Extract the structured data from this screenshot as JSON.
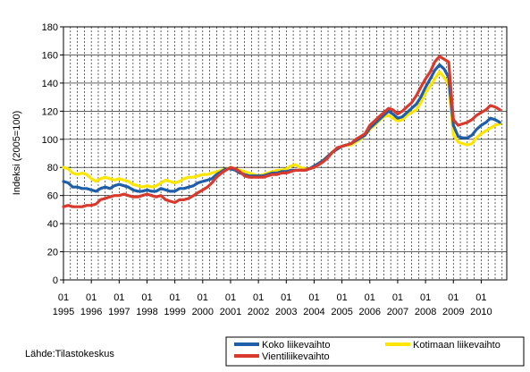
{
  "source_label": "Lähde:Tilastokeskus",
  "chart_data": {
    "type": "line",
    "title": "",
    "ylabel": "Indeksi (2005=100)",
    "xlabel": "",
    "ylim": [
      0,
      180
    ],
    "yticks": [
      0,
      20,
      40,
      60,
      80,
      100,
      120,
      140,
      160,
      180
    ],
    "x_start": 1995.0,
    "x_end": 2010.917,
    "xtick_years": [
      "1995",
      "1996",
      "1997",
      "1998",
      "1999",
      "2000",
      "2001",
      "2002",
      "2003",
      "2004",
      "2005",
      "2006",
      "2007",
      "2008",
      "2009",
      "2010"
    ],
    "xtick_quarter_label": "01",
    "grid": "vertical-dashed",
    "legend_placement": "bottom-right",
    "series": [
      {
        "name": "Koko liikevaihto",
        "color": "#1f5fa8",
        "points": [
          [
            1995.0,
            70
          ],
          [
            1995.17,
            69
          ],
          [
            1995.33,
            66
          ],
          [
            1995.5,
            66
          ],
          [
            1995.67,
            65
          ],
          [
            1995.83,
            65
          ],
          [
            1996.0,
            64
          ],
          [
            1996.17,
            63
          ],
          [
            1996.33,
            65
          ],
          [
            1996.5,
            66
          ],
          [
            1996.67,
            65
          ],
          [
            1996.83,
            67
          ],
          [
            1997.0,
            68
          ],
          [
            1997.17,
            67
          ],
          [
            1997.33,
            66
          ],
          [
            1997.5,
            64
          ],
          [
            1997.67,
            63
          ],
          [
            1997.83,
            63
          ],
          [
            1998.0,
            64
          ],
          [
            1998.17,
            63
          ],
          [
            1998.33,
            63
          ],
          [
            1998.5,
            65
          ],
          [
            1998.67,
            64
          ],
          [
            1998.83,
            63
          ],
          [
            1999.0,
            63
          ],
          [
            1999.17,
            65
          ],
          [
            1999.33,
            65
          ],
          [
            1999.5,
            66
          ],
          [
            1999.67,
            67
          ],
          [
            1999.83,
            69
          ],
          [
            2000.0,
            70
          ],
          [
            2000.17,
            71
          ],
          [
            2000.33,
            72
          ],
          [
            2000.5,
            75
          ],
          [
            2000.67,
            77
          ],
          [
            2000.83,
            79
          ],
          [
            2001.0,
            79
          ],
          [
            2001.17,
            78
          ],
          [
            2001.33,
            76
          ],
          [
            2001.5,
            75
          ],
          [
            2001.67,
            74
          ],
          [
            2001.83,
            74
          ],
          [
            2002.0,
            74
          ],
          [
            2002.17,
            74
          ],
          [
            2002.33,
            75
          ],
          [
            2002.5,
            76
          ],
          [
            2002.67,
            76
          ],
          [
            2002.83,
            77
          ],
          [
            2003.0,
            77
          ],
          [
            2003.17,
            78
          ],
          [
            2003.33,
            78
          ],
          [
            2003.5,
            78
          ],
          [
            2003.67,
            78
          ],
          [
            2003.83,
            79
          ],
          [
            2004.0,
            81
          ],
          [
            2004.17,
            83
          ],
          [
            2004.33,
            85
          ],
          [
            2004.5,
            88
          ],
          [
            2004.67,
            91
          ],
          [
            2004.83,
            93
          ],
          [
            2005.0,
            95
          ],
          [
            2005.17,
            96
          ],
          [
            2005.33,
            97
          ],
          [
            2005.5,
            99
          ],
          [
            2005.67,
            101
          ],
          [
            2005.83,
            103
          ],
          [
            2006.0,
            108
          ],
          [
            2006.17,
            111
          ],
          [
            2006.33,
            114
          ],
          [
            2006.5,
            117
          ],
          [
            2006.67,
            120
          ],
          [
            2006.83,
            118
          ],
          [
            2007.0,
            115
          ],
          [
            2007.17,
            116
          ],
          [
            2007.33,
            119
          ],
          [
            2007.5,
            122
          ],
          [
            2007.67,
            125
          ],
          [
            2007.83,
            130
          ],
          [
            2008.0,
            137
          ],
          [
            2008.17,
            143
          ],
          [
            2008.33,
            149
          ],
          [
            2008.5,
            153
          ],
          [
            2008.67,
            150
          ],
          [
            2008.83,
            144
          ],
          [
            2009.0,
            110
          ],
          [
            2009.17,
            102
          ],
          [
            2009.33,
            101
          ],
          [
            2009.5,
            101
          ],
          [
            2009.67,
            103
          ],
          [
            2009.83,
            107
          ],
          [
            2010.0,
            110
          ],
          [
            2010.17,
            112
          ],
          [
            2010.33,
            115
          ],
          [
            2010.5,
            114
          ],
          [
            2010.67,
            112
          ]
        ]
      },
      {
        "name": "Kotimaan liikevaihto",
        "color": "#ffe600",
        "points": [
          [
            1995.0,
            80
          ],
          [
            1995.17,
            79
          ],
          [
            1995.33,
            76
          ],
          [
            1995.5,
            75
          ],
          [
            1995.67,
            76
          ],
          [
            1995.83,
            75
          ],
          [
            1996.0,
            72
          ],
          [
            1996.17,
            70
          ],
          [
            1996.33,
            72
          ],
          [
            1996.5,
            73
          ],
          [
            1996.67,
            72
          ],
          [
            1996.83,
            71
          ],
          [
            1997.0,
            72
          ],
          [
            1997.17,
            71
          ],
          [
            1997.33,
            70
          ],
          [
            1997.5,
            68
          ],
          [
            1997.67,
            67
          ],
          [
            1997.83,
            66
          ],
          [
            1998.0,
            67
          ],
          [
            1998.17,
            66
          ],
          [
            1998.33,
            67
          ],
          [
            1998.5,
            69
          ],
          [
            1998.67,
            71
          ],
          [
            1998.83,
            70
          ],
          [
            1999.0,
            69
          ],
          [
            1999.17,
            70
          ],
          [
            1999.33,
            72
          ],
          [
            1999.5,
            73
          ],
          [
            1999.67,
            73
          ],
          [
            1999.83,
            74
          ],
          [
            2000.0,
            75
          ],
          [
            2000.17,
            75
          ],
          [
            2000.33,
            76
          ],
          [
            2000.5,
            77
          ],
          [
            2000.67,
            78
          ],
          [
            2000.83,
            79
          ],
          [
            2001.0,
            80
          ],
          [
            2001.17,
            79
          ],
          [
            2001.33,
            78
          ],
          [
            2001.5,
            77
          ],
          [
            2001.67,
            76
          ],
          [
            2001.83,
            75
          ],
          [
            2002.0,
            74
          ],
          [
            2002.17,
            75
          ],
          [
            2002.33,
            76
          ],
          [
            2002.5,
            77
          ],
          [
            2002.67,
            78
          ],
          [
            2002.83,
            78
          ],
          [
            2003.0,
            79
          ],
          [
            2003.17,
            81
          ],
          [
            2003.33,
            82
          ],
          [
            2003.5,
            80
          ],
          [
            2003.67,
            79
          ],
          [
            2003.83,
            79
          ],
          [
            2004.0,
            81
          ],
          [
            2004.17,
            83
          ],
          [
            2004.33,
            85
          ],
          [
            2004.5,
            88
          ],
          [
            2004.67,
            91
          ],
          [
            2004.83,
            93
          ],
          [
            2005.0,
            95
          ],
          [
            2005.17,
            96
          ],
          [
            2005.33,
            96
          ],
          [
            2005.5,
            98
          ],
          [
            2005.67,
            100
          ],
          [
            2005.83,
            103
          ],
          [
            2006.0,
            107
          ],
          [
            2006.17,
            110
          ],
          [
            2006.33,
            113
          ],
          [
            2006.5,
            116
          ],
          [
            2006.67,
            117
          ],
          [
            2006.83,
            115
          ],
          [
            2007.0,
            113
          ],
          [
            2007.17,
            114
          ],
          [
            2007.33,
            117
          ],
          [
            2007.5,
            119
          ],
          [
            2007.67,
            121
          ],
          [
            2007.83,
            126
          ],
          [
            2008.0,
            133
          ],
          [
            2008.17,
            138
          ],
          [
            2008.33,
            143
          ],
          [
            2008.5,
            148
          ],
          [
            2008.67,
            144
          ],
          [
            2008.83,
            139
          ],
          [
            2009.0,
            103
          ],
          [
            2009.17,
            98
          ],
          [
            2009.33,
            97
          ],
          [
            2009.5,
            96
          ],
          [
            2009.67,
            97
          ],
          [
            2009.83,
            101
          ],
          [
            2010.0,
            104
          ],
          [
            2010.17,
            106
          ],
          [
            2010.33,
            108
          ],
          [
            2010.5,
            110
          ],
          [
            2010.67,
            111
          ]
        ]
      },
      {
        "name": "Vientiliikevaihto",
        "color": "#d93a2e",
        "points": [
          [
            1995.0,
            52
          ],
          [
            1995.17,
            53
          ],
          [
            1995.33,
            52
          ],
          [
            1995.5,
            52
          ],
          [
            1995.67,
            52
          ],
          [
            1995.83,
            53
          ],
          [
            1996.0,
            53
          ],
          [
            1996.17,
            54
          ],
          [
            1996.33,
            57
          ],
          [
            1996.5,
            58
          ],
          [
            1996.67,
            59
          ],
          [
            1996.83,
            60
          ],
          [
            1997.0,
            60
          ],
          [
            1997.17,
            61
          ],
          [
            1997.33,
            60
          ],
          [
            1997.5,
            59
          ],
          [
            1997.67,
            59
          ],
          [
            1997.83,
            60
          ],
          [
            1998.0,
            61
          ],
          [
            1998.17,
            60
          ],
          [
            1998.33,
            59
          ],
          [
            1998.5,
            60
          ],
          [
            1998.67,
            57
          ],
          [
            1998.83,
            56
          ],
          [
            1999.0,
            55
          ],
          [
            1999.17,
            57
          ],
          [
            1999.33,
            57
          ],
          [
            1999.5,
            58
          ],
          [
            1999.67,
            60
          ],
          [
            1999.83,
            62
          ],
          [
            2000.0,
            64
          ],
          [
            2000.17,
            66
          ],
          [
            2000.33,
            69
          ],
          [
            2000.5,
            73
          ],
          [
            2000.67,
            76
          ],
          [
            2000.83,
            78
          ],
          [
            2001.0,
            80
          ],
          [
            2001.17,
            79
          ],
          [
            2001.33,
            77
          ],
          [
            2001.5,
            74
          ],
          [
            2001.67,
            73
          ],
          [
            2001.83,
            73
          ],
          [
            2002.0,
            73
          ],
          [
            2002.17,
            73
          ],
          [
            2002.33,
            74
          ],
          [
            2002.5,
            75
          ],
          [
            2002.67,
            75
          ],
          [
            2002.83,
            76
          ],
          [
            2003.0,
            76
          ],
          [
            2003.17,
            77
          ],
          [
            2003.33,
            78
          ],
          [
            2003.5,
            78
          ],
          [
            2003.67,
            78
          ],
          [
            2003.83,
            79
          ],
          [
            2004.0,
            80
          ],
          [
            2004.17,
            82
          ],
          [
            2004.33,
            84
          ],
          [
            2004.5,
            87
          ],
          [
            2004.67,
            91
          ],
          [
            2004.83,
            94
          ],
          [
            2005.0,
            95
          ],
          [
            2005.17,
            96
          ],
          [
            2005.33,
            97
          ],
          [
            2005.5,
            100
          ],
          [
            2005.67,
            102
          ],
          [
            2005.83,
            104
          ],
          [
            2006.0,
            110
          ],
          [
            2006.17,
            113
          ],
          [
            2006.33,
            116
          ],
          [
            2006.5,
            119
          ],
          [
            2006.67,
            122
          ],
          [
            2006.83,
            121
          ],
          [
            2007.0,
            118
          ],
          [
            2007.17,
            120
          ],
          [
            2007.33,
            123
          ],
          [
            2007.5,
            126
          ],
          [
            2007.67,
            131
          ],
          [
            2007.83,
            137
          ],
          [
            2008.0,
            143
          ],
          [
            2008.17,
            148
          ],
          [
            2008.33,
            155
          ],
          [
            2008.5,
            159
          ],
          [
            2008.67,
            157
          ],
          [
            2008.83,
            155
          ],
          [
            2009.0,
            114
          ],
          [
            2009.17,
            110
          ],
          [
            2009.33,
            111
          ],
          [
            2009.5,
            112
          ],
          [
            2009.67,
            114
          ],
          [
            2009.83,
            117
          ],
          [
            2010.0,
            119
          ],
          [
            2010.17,
            121
          ],
          [
            2010.33,
            124
          ],
          [
            2010.5,
            123
          ],
          [
            2010.67,
            121
          ]
        ]
      }
    ]
  }
}
